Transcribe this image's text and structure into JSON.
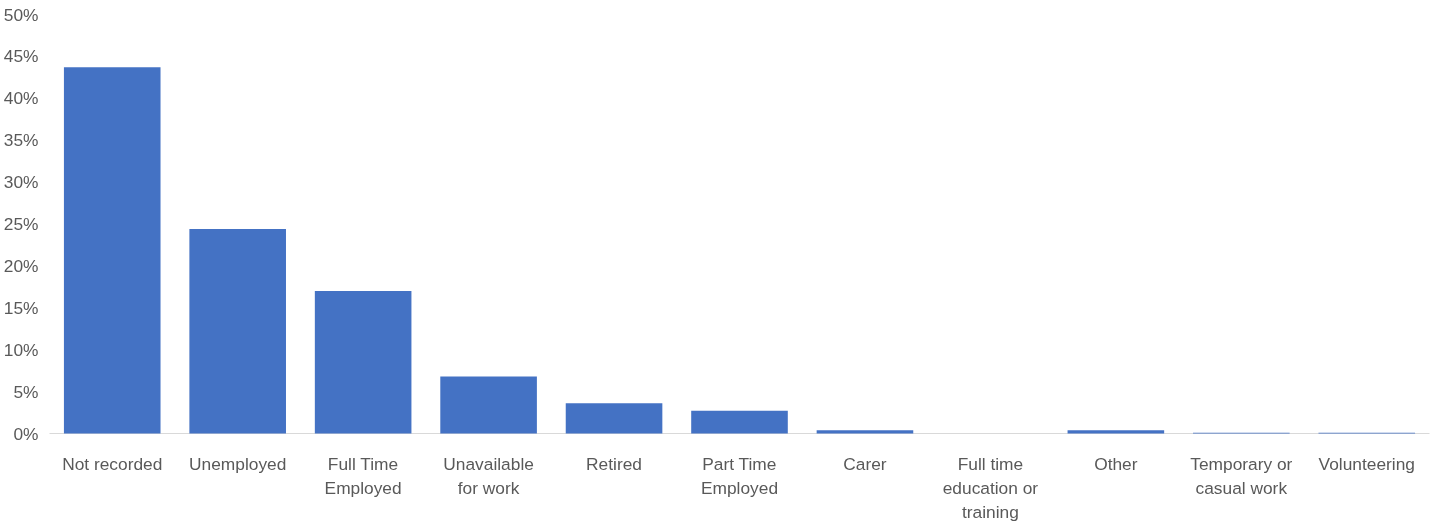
{
  "chart_data": {
    "type": "bar",
    "categories": [
      "Not recorded",
      "Unemployed",
      "Full Time Employed",
      "Unavailable for work",
      "Retired",
      "Part Time Employed",
      "Carer",
      "Full time education or training",
      "Other",
      "Temporary or casual work",
      "Volunteering"
    ],
    "values": [
      43.7,
      24.4,
      17.0,
      6.8,
      3.6,
      2.7,
      0.4,
      0,
      0.4,
      0.1,
      0.1
    ],
    "color": "#4472c4",
    "ylim": [
      0,
      50
    ],
    "yticks": [
      {
        "value": 0,
        "label": "0%"
      },
      {
        "value": 5,
        "label": "5%"
      },
      {
        "value": 10,
        "label": "10%"
      },
      {
        "value": 15,
        "label": "15%"
      },
      {
        "value": 20,
        "label": "20%"
      },
      {
        "value": 25,
        "label": "25%"
      },
      {
        "value": 30,
        "label": "30%"
      },
      {
        "value": 35,
        "label": "35%"
      },
      {
        "value": 40,
        "label": "40%"
      },
      {
        "value": 45,
        "label": "45%"
      },
      {
        "value": 50,
        "label": "50%"
      }
    ],
    "grid": false
  }
}
